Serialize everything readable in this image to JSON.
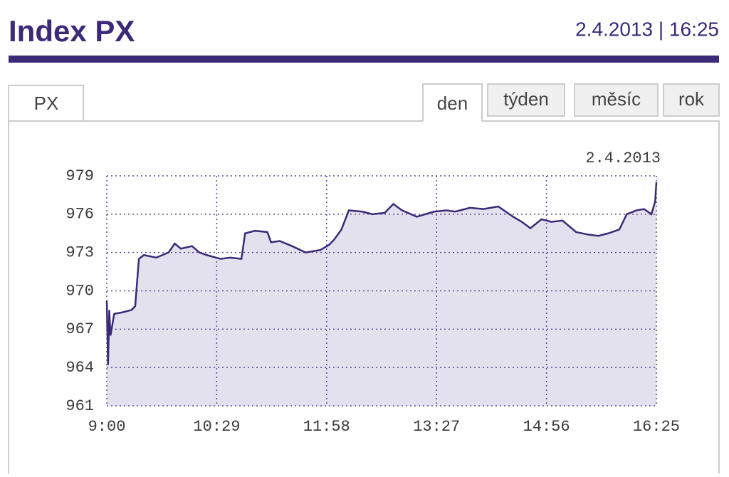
{
  "header": {
    "title": "Index PX",
    "datetime": "2.4.2013 | 16:25"
  },
  "tabs": {
    "left": "PX",
    "right": [
      "den",
      "týden",
      "měsíc",
      "rok"
    ],
    "active": 0
  },
  "chart_data": {
    "type": "area",
    "date_label": "2.4.2013",
    "color": "#3b2a78",
    "fill": "#e4e1ee",
    "grid": true,
    "x": [
      540,
      541,
      542,
      543,
      546,
      552,
      560,
      563,
      566,
      570,
      580,
      590,
      595,
      600,
      609,
      615,
      621,
      632,
      640,
      649,
      652,
      660,
      670,
      673,
      680,
      690,
      701,
      713,
      720,
      724,
      730,
      736,
      747,
      755,
      765,
      772,
      779,
      791,
      805,
      815,
      822,
      834,
      845,
      857,
      869,
      876,
      883,
      892,
      900,
      909,
      920,
      930,
      938,
      946,
      955,
      961,
      969,
      975,
      981,
      984,
      985
    ],
    "values": [
      969.2,
      964.2,
      968.5,
      966.5,
      968.2,
      968.3,
      968.5,
      968.8,
      972.5,
      972.8,
      972.6,
      973.0,
      973.7,
      973.3,
      973.5,
      973.0,
      972.8,
      972.5,
      972.6,
      972.5,
      974.5,
      974.7,
      974.6,
      973.8,
      973.9,
      973.5,
      973.0,
      973.2,
      973.6,
      974.0,
      974.8,
      976.3,
      976.2,
      976.0,
      976.1,
      976.8,
      976.3,
      975.8,
      976.2,
      976.3,
      976.2,
      976.5,
      976.4,
      976.6,
      975.8,
      975.4,
      974.9,
      975.6,
      975.4,
      975.5,
      974.6,
      974.4,
      974.3,
      974.5,
      974.8,
      976.0,
      976.3,
      976.4,
      976.0,
      977.0,
      978.5
    ],
    "xlim": [
      540,
      985
    ],
    "xticks": [
      {
        "value": 540,
        "label": "9:00"
      },
      {
        "value": 629,
        "label": "10:29"
      },
      {
        "value": 718,
        "label": "11:58"
      },
      {
        "value": 807,
        "label": "13:27"
      },
      {
        "value": 896,
        "label": "14:56"
      },
      {
        "value": 985,
        "label": "16:25"
      }
    ],
    "ylim": [
      961,
      979
    ],
    "yticks": [
      961,
      964,
      967,
      970,
      973,
      976,
      979
    ]
  }
}
